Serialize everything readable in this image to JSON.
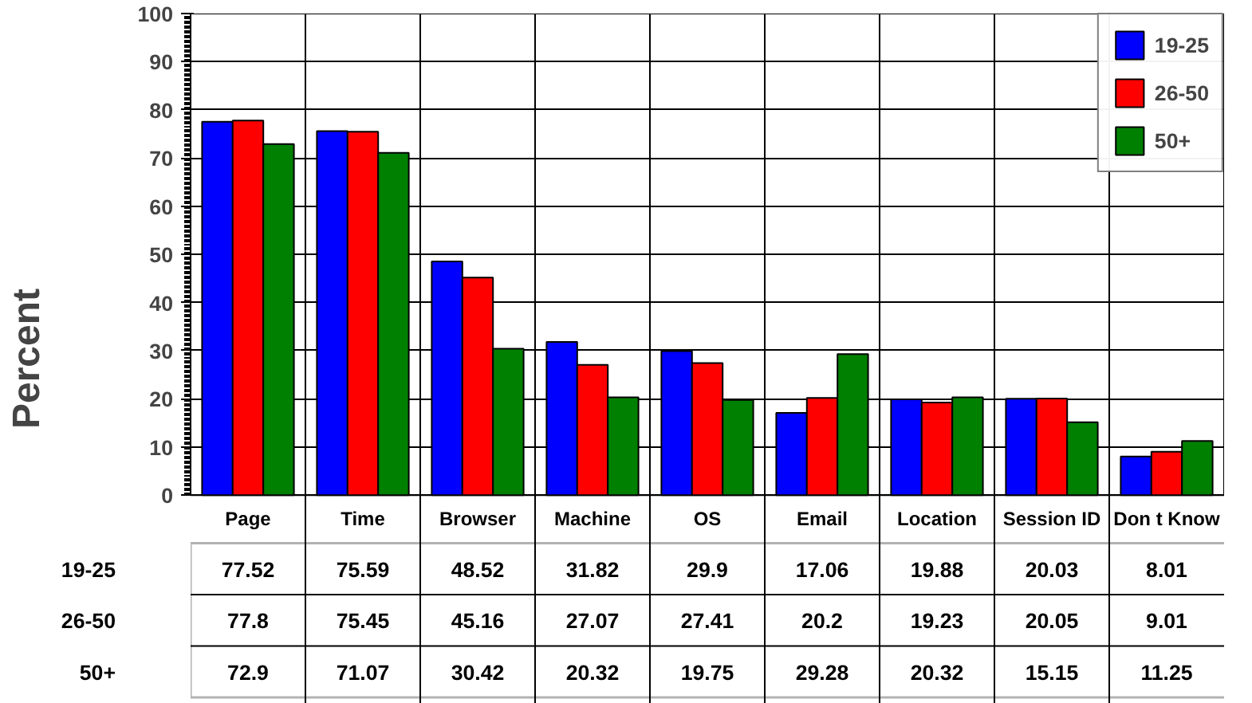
{
  "chart_data": {
    "type": "bar",
    "ylabel": "Percent",
    "categories": [
      "Page",
      "Time",
      "Browser",
      "Machine",
      "OS",
      "Email",
      "Location",
      "Session ID",
      "Don t Know"
    ],
    "series": [
      {
        "name": "19-25",
        "color": "#0000ff",
        "values": [
          77.52,
          75.59,
          48.52,
          31.82,
          29.9,
          17.06,
          19.88,
          20.03,
          8.01
        ]
      },
      {
        "name": "26-50",
        "color": "#ff0000",
        "values": [
          77.8,
          75.45,
          45.16,
          27.07,
          27.41,
          20.2,
          19.23,
          20.05,
          9.01
        ]
      },
      {
        "name": "50+",
        "color": "#008000",
        "values": [
          72.9,
          71.07,
          30.42,
          20.32,
          19.75,
          29.28,
          20.32,
          15.15,
          11.25
        ]
      }
    ],
    "ylim": [
      0,
      100
    ],
    "yticks": [
      0,
      10,
      20,
      30,
      40,
      50,
      60,
      70,
      80,
      90,
      100
    ],
    "grid": true,
    "legend": "top right",
    "data_labels": true
  }
}
